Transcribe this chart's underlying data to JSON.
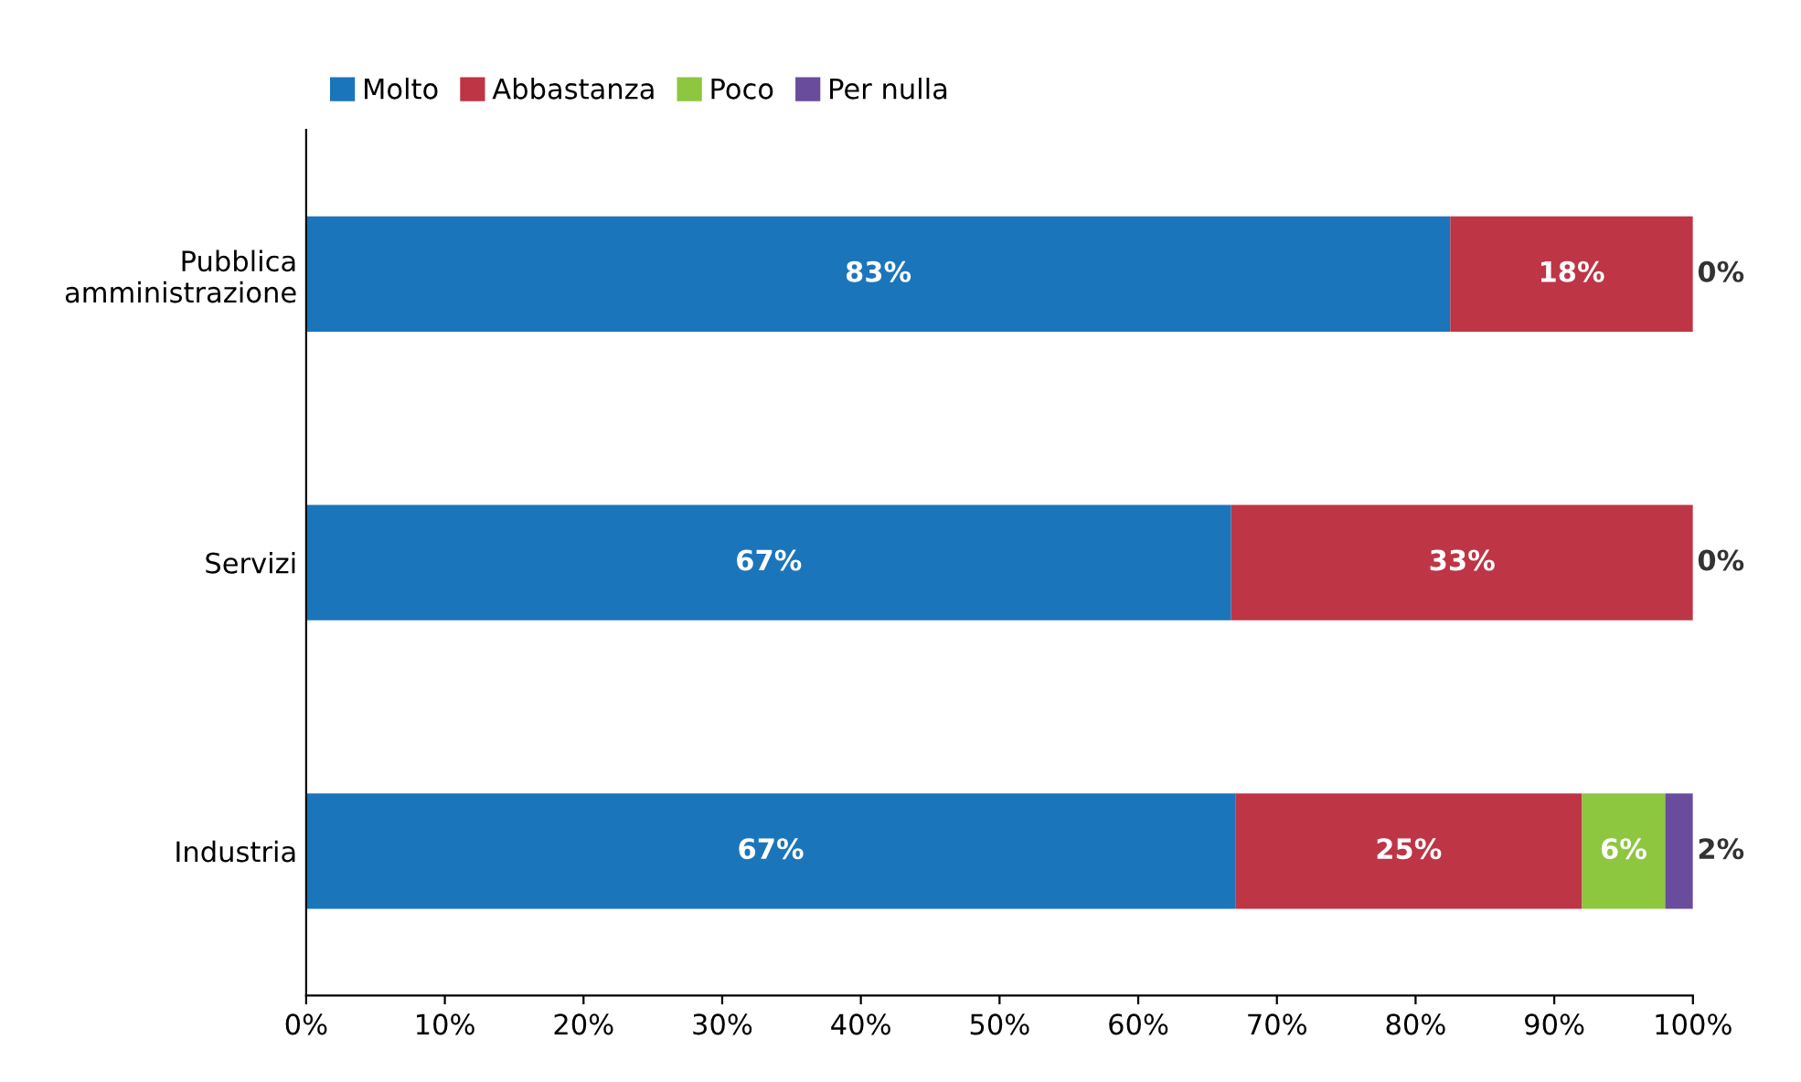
{
  "chart_data": {
    "type": "bar",
    "orientation": "horizontal",
    "stacked": true,
    "categories": [
      "Pubblica\namministrazione",
      "Servizi",
      "Industria"
    ],
    "series": [
      {
        "name": "Molto",
        "color": "#1b75bb",
        "values": [
          82.5,
          66.7,
          67
        ],
        "value_labels": [
          "83%",
          "67%",
          "67%"
        ]
      },
      {
        "name": "Abbastanza",
        "color": "#be3545",
        "values": [
          17.5,
          33.3,
          25
        ],
        "value_labels": [
          "18%",
          "33%",
          "25%"
        ]
      },
      {
        "name": "Poco",
        "color": "#8dc63f",
        "values": [
          0,
          0,
          6
        ],
        "value_labels": [
          "0%",
          "0%",
          "6%"
        ]
      },
      {
        "name": "Per nulla",
        "color": "#6a4c9c",
        "values": [
          0,
          0,
          2
        ],
        "value_labels": [
          null,
          null,
          "2%"
        ]
      }
    ],
    "xlim": [
      0,
      100
    ],
    "xticks": [
      {
        "value": 0,
        "label": "0%"
      },
      {
        "value": 10,
        "label": "10%"
      },
      {
        "value": 20,
        "label": "20%"
      },
      {
        "value": 30,
        "label": "30%"
      },
      {
        "value": 40,
        "label": "40%"
      },
      {
        "value": 50,
        "label": "50%"
      },
      {
        "value": 60,
        "label": "60%"
      },
      {
        "value": 70,
        "label": "70%"
      },
      {
        "value": 80,
        "label": "80%"
      },
      {
        "value": 90,
        "label": "90%"
      },
      {
        "value": 100,
        "label": "100%"
      }
    ],
    "grid": false,
    "legend": "top left"
  }
}
